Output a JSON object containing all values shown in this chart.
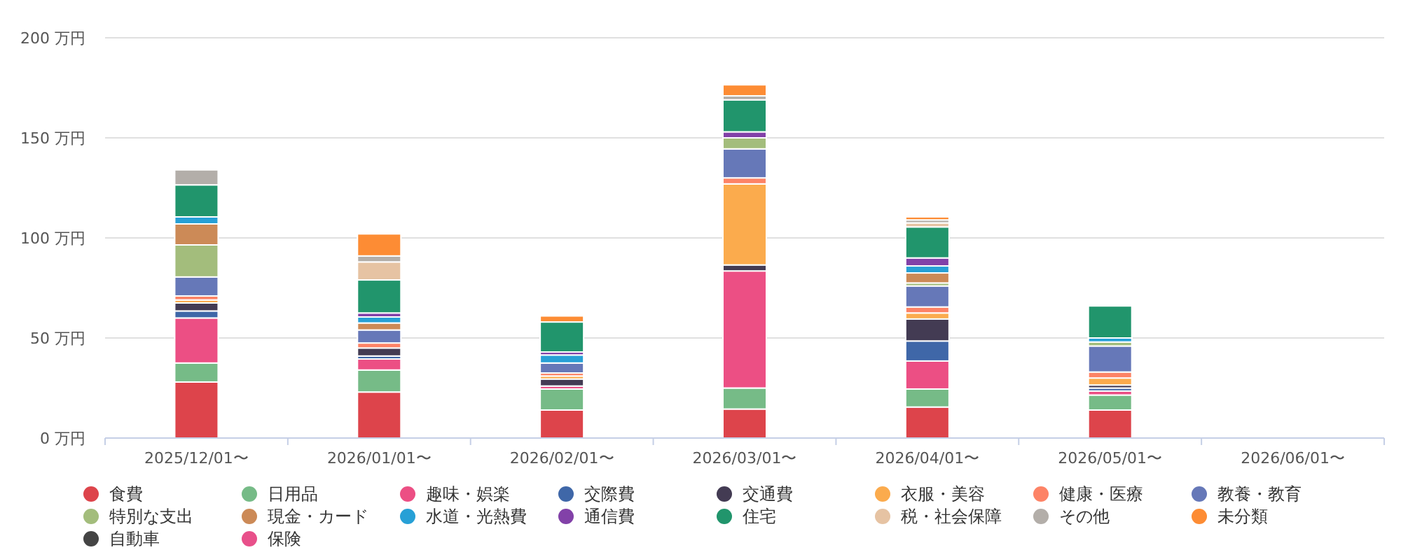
{
  "chart_data": {
    "type": "bar",
    "stacked": true,
    "categories": [
      "2025/12/01〜",
      "2026/01/01〜",
      "2026/02/01〜",
      "2026/03/01〜",
      "2026/04/01〜",
      "2026/05/01〜",
      "2026/06/01〜"
    ],
    "ylim": [
      0,
      200
    ],
    "yticks": [
      {
        "value": 0,
        "label": "0 万円"
      },
      {
        "value": 50,
        "label": "50 万円"
      },
      {
        "value": 100,
        "label": "100 万円"
      },
      {
        "value": 150,
        "label": "150 万円"
      },
      {
        "value": 200,
        "label": "200 万円"
      }
    ],
    "grid": "y",
    "legend": "bottom",
    "series": [
      {
        "name": "食費",
        "color": "#dd444b",
        "values": [
          28,
          23,
          14,
          14.5,
          15.5,
          14,
          null
        ]
      },
      {
        "name": "日用品",
        "color": "#76bb87",
        "values": [
          9.5,
          11,
          10.5,
          10.5,
          9,
          7.5,
          null
        ]
      },
      {
        "name": "趣味・娯楽",
        "color": "#ec4f84",
        "values": [
          22.5,
          5.5,
          1.5,
          58.5,
          14,
          2,
          null
        ]
      },
      {
        "name": "交際費",
        "color": "#3f67a8",
        "values": [
          3.5,
          1.5,
          null,
          null,
          10,
          1.5,
          null
        ]
      },
      {
        "name": "交通費",
        "color": "#433b53",
        "values": [
          4,
          4,
          3.5,
          3,
          11,
          1.5,
          null
        ]
      },
      {
        "name": "衣服・美容",
        "color": "#fbab4d",
        "values": [
          1.5,
          null,
          1.5,
          40.5,
          3,
          3.5,
          null
        ]
      },
      {
        "name": "健康・医療",
        "color": "#fd8366",
        "values": [
          2,
          2.5,
          1.5,
          3,
          3,
          3,
          null
        ]
      },
      {
        "name": "教養・教育",
        "color": "#6678b8",
        "values": [
          9.5,
          6.5,
          5,
          14.5,
          10.5,
          13,
          null
        ]
      },
      {
        "name": "特別な支出",
        "color": "#a3bd7c",
        "values": [
          16,
          null,
          null,
          5.5,
          1.5,
          2,
          null
        ]
      },
      {
        "name": "現金・カード",
        "color": "#cc8a57",
        "values": [
          10.5,
          3.5,
          null,
          null,
          5,
          null,
          null
        ]
      },
      {
        "name": "水道・光熱費",
        "color": "#27a0d6",
        "values": [
          3.5,
          3,
          4,
          null,
          3.5,
          2,
          null
        ]
      },
      {
        "name": "通信費",
        "color": "#8241a8",
        "values": [
          null,
          2,
          1.5,
          3,
          4,
          null,
          null
        ]
      },
      {
        "name": "住宅",
        "color": "#21956c",
        "values": [
          16,
          16.5,
          15,
          16,
          15.5,
          16,
          null
        ]
      },
      {
        "name": "税・社会保障",
        "color": "#e6c3a3",
        "values": [
          null,
          9,
          null,
          null,
          2,
          null,
          null
        ]
      },
      {
        "name": "その他",
        "color": "#b3aea9",
        "values": [
          7.5,
          3,
          null,
          2,
          1.5,
          null,
          null
        ]
      },
      {
        "name": "未分類",
        "color": "#fd8c34",
        "values": [
          null,
          11,
          3,
          5.5,
          1.5,
          null,
          null
        ]
      },
      {
        "name": "自動車",
        "color": "#444444",
        "values": [
          null,
          null,
          null,
          null,
          null,
          null,
          null
        ]
      },
      {
        "name": "保険",
        "color": "#e8508a",
        "values": [
          null,
          null,
          null,
          null,
          null,
          null,
          null
        ]
      }
    ]
  }
}
